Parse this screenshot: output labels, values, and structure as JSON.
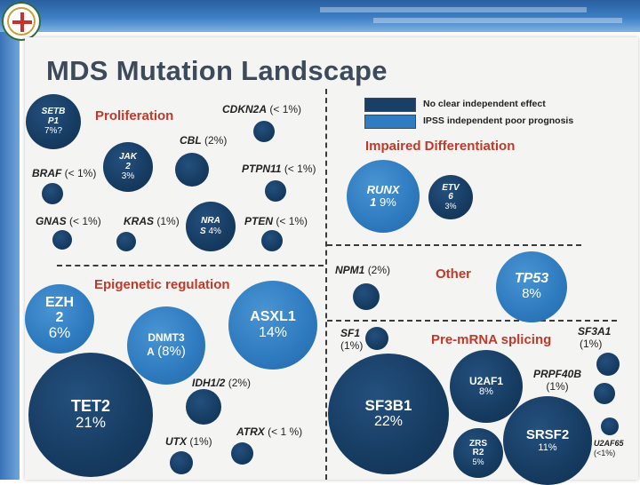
{
  "slide": {
    "title": "MDS Mutation Landscape"
  },
  "legend": {
    "items": [
      {
        "label": "No clear independent effect",
        "color": "#1a3f66"
      },
      {
        "label": "IPSS independent poor prognosis",
        "color": "#2f7cc0"
      }
    ]
  },
  "sections": {
    "proliferation": "Proliferation",
    "epigenetic": "Epigenetic regulation",
    "impaired_diff": "Impaired Differentiation",
    "other": "Other",
    "splicing": "Pre-mRNA splicing"
  },
  "colors": {
    "navy": "#1a3f66",
    "blue": "#2f7cc0",
    "section_text": "#c0392b",
    "title_text": "#3c4a5a"
  },
  "proliferation": {
    "setbp1": {
      "name1": "SETB",
      "name2": "P1",
      "pct": "7%?"
    },
    "jak2": {
      "name1": "JAK",
      "name2": "2",
      "pct": "3%"
    },
    "nras": {
      "name1": "NRA",
      "name2": "S",
      "pct": "4%"
    },
    "cdkn2a": {
      "name": "CDKN2A",
      "pct": "(< 1%)"
    },
    "cbl": {
      "name": "CBL",
      "pct": "(2%)"
    },
    "ptpn11": {
      "name": "PTPN11",
      "pct": "(< 1%)"
    },
    "braf": {
      "name": "BRAF",
      "pct": "(< 1%)"
    },
    "gnas": {
      "name": "GNAS",
      "pct": "(< 1%)"
    },
    "kras": {
      "name": "KRAS",
      "pct": "(1%)"
    },
    "pten": {
      "name": "PTEN",
      "pct": "(< 1%)"
    }
  },
  "epigenetic": {
    "ezh2": {
      "name1": "EZH",
      "name2": "2",
      "pct": "6%"
    },
    "dnmt3a": {
      "name1": "DNMT3",
      "name2": "A",
      "pct": "(8%)"
    },
    "asxl1": {
      "name": "ASXL1",
      "pct": "14%"
    },
    "tet2": {
      "name": "TET2",
      "pct": "21%"
    },
    "idh12": {
      "name": "IDH1/2",
      "pct": "(2%)"
    },
    "utx": {
      "name": "UTX",
      "pct": "(1%)"
    },
    "atrx": {
      "name": "ATRX",
      "pct": "(< 1 %)"
    }
  },
  "differentiation": {
    "runx1": {
      "name1": "RUNX",
      "name2": "1",
      "pct": "9%"
    },
    "etv6": {
      "name1": "ETV",
      "name2": "6",
      "pct": "3%"
    }
  },
  "other": {
    "npm1": {
      "name": "NPM1",
      "pct": "(2%)"
    },
    "tp53": {
      "name": "TP53",
      "pct": "8%"
    }
  },
  "splicing": {
    "sf1": {
      "name": "SF1",
      "pct": "(1%)"
    },
    "sf3b1": {
      "name": "SF3B1",
      "pct": "22%"
    },
    "u2af1": {
      "name": "U2AF1",
      "pct": "8%"
    },
    "zrsr2": {
      "name1": "ZRS",
      "name2": "R2",
      "pct": "5%"
    },
    "srsf2": {
      "name": "SRSF2",
      "pct": "11%"
    },
    "sf3a1": {
      "name": "SF3A1",
      "pct": "(1%)"
    },
    "prpf40b": {
      "name": "PRPF40B",
      "pct": "(1%)"
    },
    "u2af65": {
      "name": "U2AF65",
      "pct": "(<1%)"
    }
  }
}
